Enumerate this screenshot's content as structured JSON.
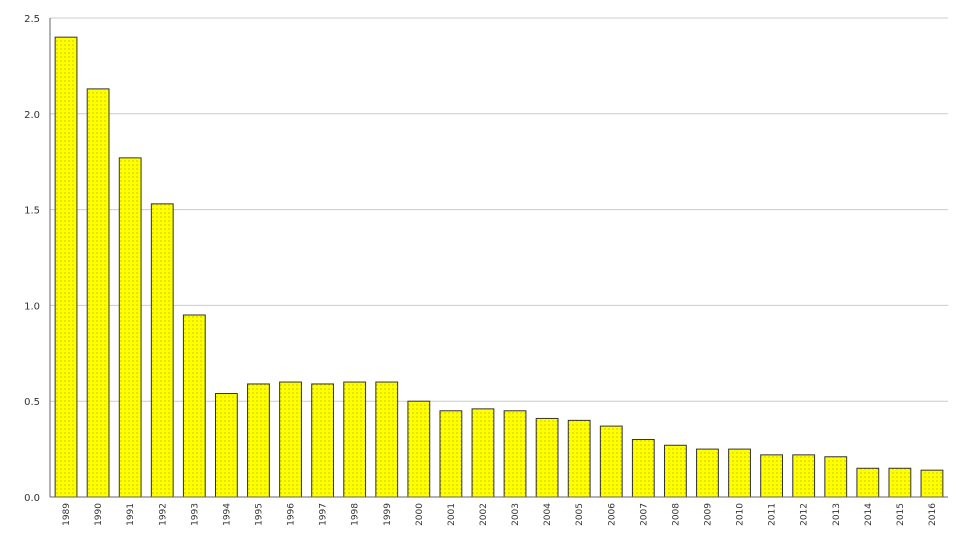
{
  "chart_data": {
    "type": "bar",
    "title": "",
    "xlabel": "",
    "ylabel": "",
    "ylim": [
      0,
      2.5
    ],
    "yticks": [
      "0.0",
      "0.5",
      "1.0",
      "1.5",
      "2.0",
      "2.5"
    ],
    "grid": true,
    "categories": [
      "1989",
      "1990",
      "1991",
      "1992",
      "1993",
      "1994",
      "1995",
      "1996",
      "1997",
      "1998",
      "1999",
      "2000",
      "2001",
      "2002",
      "2003",
      "2004",
      "2005",
      "2006",
      "2007",
      "2008",
      "2009",
      "2010",
      "2011",
      "2012",
      "2013",
      "2014",
      "2015",
      "2016"
    ],
    "values": [
      2.4,
      2.13,
      1.77,
      1.53,
      0.95,
      0.54,
      0.59,
      0.6,
      0.59,
      0.6,
      0.6,
      0.5,
      0.45,
      0.46,
      0.45,
      0.41,
      0.4,
      0.37,
      0.3,
      0.27,
      0.25,
      0.25,
      0.22,
      0.22,
      0.21,
      0.15,
      0.15,
      0.14
    ],
    "colors": {
      "bar_fill": "#ffff00",
      "bar_dots": "#a8a800",
      "bar_stroke": "#333333",
      "grid": "#cccccc",
      "axis": "#666666"
    }
  }
}
